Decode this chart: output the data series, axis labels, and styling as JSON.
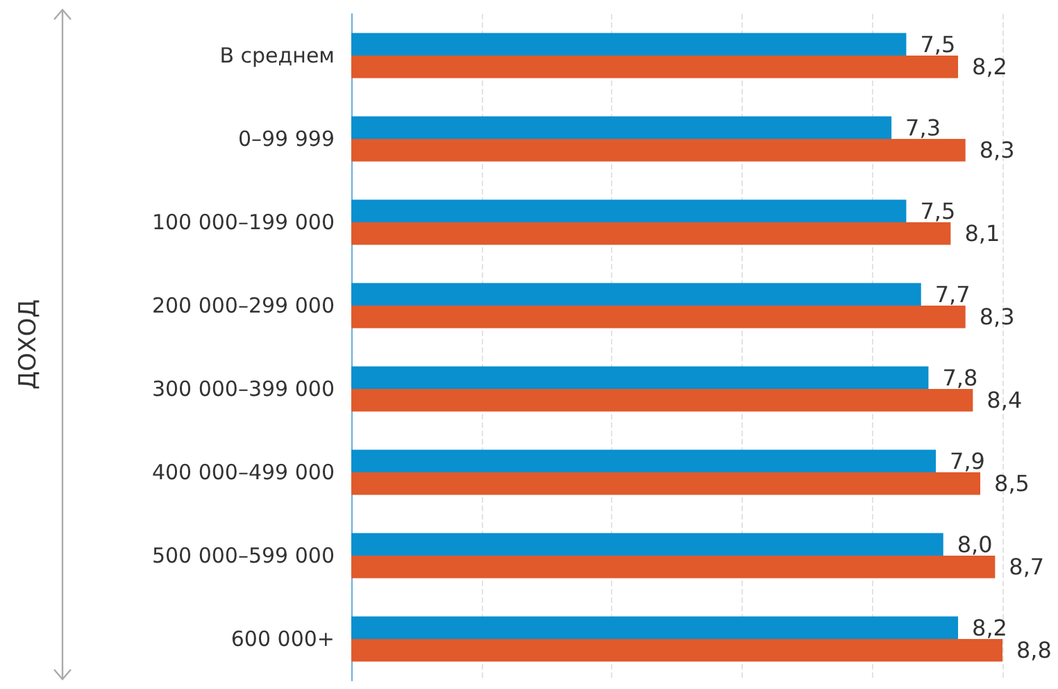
{
  "chart_data": {
    "type": "bar",
    "orientation": "horizontal",
    "ylabel": "ДОХОД",
    "categories": [
      "В среднем",
      "0–99 999",
      "100 000–199 000",
      "200 000–299 000",
      "300 000–399 000",
      "400 000–499 000",
      "500 000–599 000",
      "600 000+"
    ],
    "series": [
      {
        "color": "#0a8fcf",
        "values": [
          7.5,
          7.3,
          7.5,
          7.7,
          7.8,
          7.9,
          8.0,
          8.2
        ],
        "value_labels": [
          "7,5",
          "7,3",
          "7,5",
          "7,7",
          "7,8",
          "7,9",
          "8,0",
          "8,2"
        ]
      },
      {
        "color": "#e05a2b",
        "values": [
          8.2,
          8.3,
          8.1,
          8.3,
          8.4,
          8.5,
          8.7,
          8.8
        ],
        "value_labels": [
          "8,2",
          "8,3",
          "8,1",
          "8,3",
          "8,4",
          "8,5",
          "8,7",
          "8,8"
        ]
      }
    ],
    "xlim": [
      0,
      8.8
    ],
    "xticks": [
      {
        "value": 0,
        "label": null
      },
      {
        "value": 1.76,
        "label": null
      },
      {
        "value": 3.52,
        "label": null
      },
      {
        "value": 5.28,
        "label": null
      },
      {
        "value": 7.04,
        "label": null
      },
      {
        "value": 8.8,
        "label": null
      }
    ],
    "grid": "x",
    "tick_labels": "y"
  }
}
